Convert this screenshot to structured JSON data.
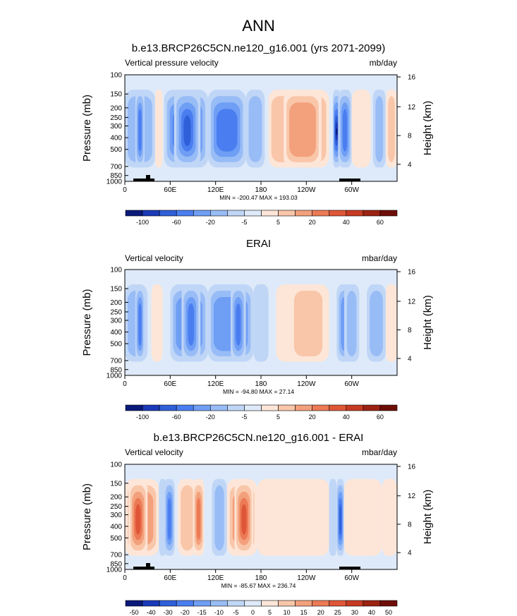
{
  "page": {
    "title": "ANN"
  },
  "chart_data": [
    {
      "type": "heatmap",
      "title": "b.e13.BRCP26C5CN.ne120_g16.001 (yrs 2071-2099)",
      "left_label": "Vertical pressure velocity",
      "right_label": "mb/day",
      "ylabel": "Pressure (mb)",
      "ylabel_right": "Height (km)",
      "xticks": [
        "0",
        "60E",
        "120E",
        "180",
        "120W",
        "60W"
      ],
      "yticks": [
        "100",
        "150",
        "200",
        "250",
        "300",
        "400",
        "500",
        "700",
        "850",
        "1000"
      ],
      "yticks_right": [
        "16",
        "12",
        "8",
        "4"
      ],
      "stats": "MIN = -200.47  MAX = 193.03",
      "colorbar_labels": [
        "-100",
        "-60",
        "-20",
        "-5",
        "5",
        "20",
        "40",
        "60"
      ],
      "colorbar_colors": [
        "#0a1a7a",
        "#1a3ab8",
        "#2f5fd9",
        "#4a7ef0",
        "#6f9ef5",
        "#98bcf6",
        "#c0d6f7",
        "#deeaf9",
        "#fde6d8",
        "#f9c6a9",
        "#f3a07c",
        "#ec7a55",
        "#df5636",
        "#c63a22",
        "#9c2212",
        "#6e0d07"
      ],
      "colorbar_scheme": "blue-white-red, 16 levels",
      "continent_mask": true,
      "features": [
        {
          "x0": 0,
          "x1": 40,
          "level": -2
        },
        {
          "x0": 14,
          "x1": 26,
          "level": -4
        },
        {
          "x0": 40,
          "x1": 50,
          "level": 1
        },
        {
          "x0": 52,
          "x1": 110,
          "level": -4
        },
        {
          "x0": 65,
          "x1": 100,
          "level": -5
        },
        {
          "x0": 110,
          "x1": 160,
          "level": -4
        },
        {
          "x0": 160,
          "x1": 185,
          "level": -2
        },
        {
          "x0": 190,
          "x1": 270,
          "level": 2
        },
        {
          "x0": 210,
          "x1": 260,
          "level": 3
        },
        {
          "x0": 275,
          "x1": 285,
          "level": -7
        },
        {
          "x0": 282,
          "x1": 300,
          "level": -4
        },
        {
          "x0": 300,
          "x1": 325,
          "level": 1
        },
        {
          "x0": 328,
          "x1": 345,
          "level": -2
        },
        {
          "x0": 345,
          "x1": 360,
          "level": 2
        }
      ]
    },
    {
      "type": "heatmap",
      "title": "ERAI",
      "left_label": "Vertical velocity",
      "right_label": "mbar/day",
      "ylabel": "Pressure (mb)",
      "ylabel_right": "Height (km)",
      "xticks": [
        "0",
        "60E",
        "120E",
        "180",
        "120W",
        "60W"
      ],
      "yticks": [
        "100",
        "150",
        "200",
        "250",
        "300",
        "400",
        "500",
        "700",
        "850",
        "1000"
      ],
      "yticks_right": [
        "16",
        "12",
        "8",
        "4"
      ],
      "stats": "MIN = -94.80  MAX = 27.14",
      "colorbar_labels": [
        "-100",
        "-60",
        "-20",
        "-5",
        "5",
        "20",
        "40",
        "60"
      ],
      "colorbar_colors": [
        "#0a1a7a",
        "#1a3ab8",
        "#2f5fd9",
        "#4a7ef0",
        "#6f9ef5",
        "#98bcf6",
        "#c0d6f7",
        "#deeaf9",
        "#fde6d8",
        "#f9c6a9",
        "#f3a07c",
        "#ec7a55",
        "#df5636",
        "#c63a22",
        "#9c2212",
        "#6e0d07"
      ],
      "colorbar_scheme": "blue-white-red, 16 levels",
      "continent_mask": false,
      "features": [
        {
          "x0": 0,
          "x1": 30,
          "level": -2
        },
        {
          "x0": 14,
          "x1": 26,
          "level": -4
        },
        {
          "x0": 35,
          "x1": 50,
          "level": 1
        },
        {
          "x0": 60,
          "x1": 110,
          "level": -3
        },
        {
          "x0": 75,
          "x1": 100,
          "level": -4
        },
        {
          "x0": 110,
          "x1": 170,
          "level": -3
        },
        {
          "x0": 140,
          "x1": 160,
          "level": -4
        },
        {
          "x0": 170,
          "x1": 190,
          "level": -1
        },
        {
          "x0": 200,
          "x1": 270,
          "level": 1
        },
        {
          "x0": 220,
          "x1": 265,
          "level": 2
        },
        {
          "x0": 280,
          "x1": 300,
          "level": -3
        },
        {
          "x0": 290,
          "x1": 310,
          "level": -2
        },
        {
          "x0": 320,
          "x1": 345,
          "level": -2
        },
        {
          "x0": 345,
          "x1": 360,
          "level": 1
        }
      ]
    },
    {
      "type": "heatmap",
      "title": "b.e13.BRCP26C5CN.ne120_g16.001 - ERAI",
      "left_label": "Vertical velocity",
      "right_label": "mbar/day",
      "ylabel": "Pressure (mb)",
      "ylabel_right": "Height (km)",
      "xticks": [
        "0",
        "60E",
        "120E",
        "180",
        "120W",
        "60W"
      ],
      "yticks": [
        "100",
        "150",
        "200",
        "250",
        "300",
        "400",
        "500",
        "700",
        "850",
        "1000"
      ],
      "yticks_right": [
        "16",
        "12",
        "8",
        "4"
      ],
      "stats": "MIN = -85.67  MAX = 236.74",
      "colorbar_labels": [
        "-50",
        "-40",
        "-30",
        "-20",
        "-15",
        "-10",
        "-5",
        "0",
        "5",
        "10",
        "15",
        "20",
        "25",
        "30",
        "40",
        "50"
      ],
      "colorbar_colors": [
        "#0a1a7a",
        "#1a3ab8",
        "#2f5fd9",
        "#4a7ef0",
        "#6f9ef5",
        "#98bcf6",
        "#c0d6f7",
        "#deeaf9",
        "#fde6d8",
        "#f9c6a9",
        "#f3a07c",
        "#ec7a55",
        "#df5636",
        "#c63a22",
        "#9c2212",
        "#6e0d07"
      ],
      "colorbar_scheme": "blue-white-red, 16 levels",
      "continent_mask": true,
      "features": [
        {
          "x0": 0,
          "x1": 45,
          "level": 3
        },
        {
          "x0": 5,
          "x1": 30,
          "level": 5
        },
        {
          "x0": 45,
          "x1": 55,
          "level": -1
        },
        {
          "x0": 52,
          "x1": 66,
          "level": -4
        },
        {
          "x0": 70,
          "x1": 95,
          "level": 2
        },
        {
          "x0": 90,
          "x1": 105,
          "level": 4
        },
        {
          "x0": 115,
          "x1": 135,
          "level": -2
        },
        {
          "x0": 135,
          "x1": 175,
          "level": 3
        },
        {
          "x0": 145,
          "x1": 170,
          "level": 5
        },
        {
          "x0": 175,
          "x1": 270,
          "level": 1
        },
        {
          "x0": 270,
          "x1": 280,
          "level": -1
        },
        {
          "x0": 280,
          "x1": 290,
          "level": -5
        },
        {
          "x0": 290,
          "x1": 340,
          "level": 1
        },
        {
          "x0": 340,
          "x1": 360,
          "level": 1
        }
      ]
    }
  ]
}
